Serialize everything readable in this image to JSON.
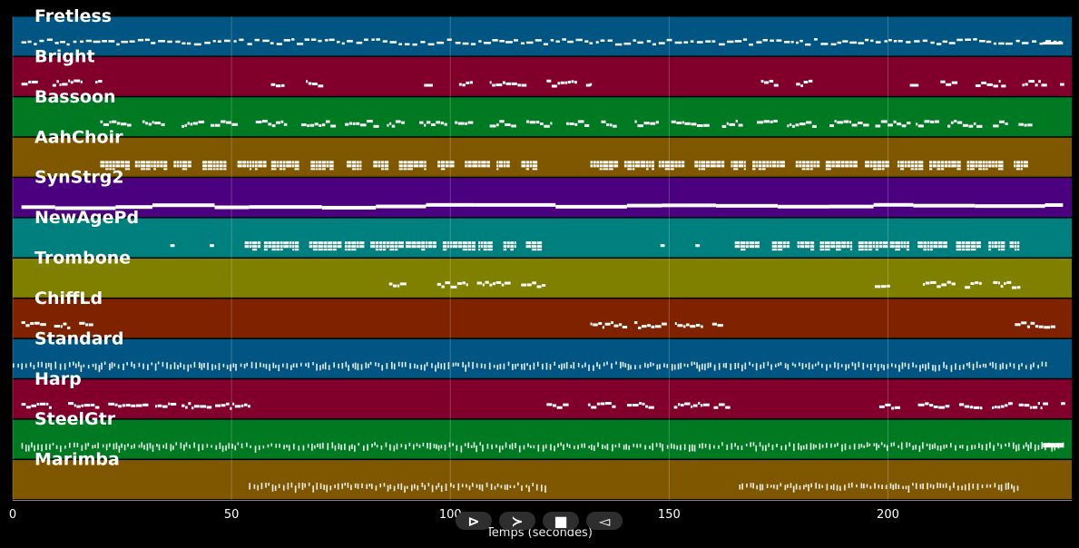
{
  "chart_data": {
    "type": "piano-roll",
    "xlabel": "Temps (secondes)",
    "xlim": [
      0,
      242
    ],
    "xticks": [
      0,
      50,
      100,
      150,
      200
    ],
    "grid": true,
    "tracks": [
      {
        "name": "Fretless",
        "color": "#005582",
        "pattern": "dense",
        "segments": [
          [
            2,
            240
          ]
        ]
      },
      {
        "name": "Bright",
        "color": "#80002b",
        "pattern": "chunks",
        "segments": [
          [
            2,
            20
          ],
          [
            59,
            62
          ],
          [
            67,
            70
          ],
          [
            94,
            96
          ],
          [
            102,
            105
          ],
          [
            109,
            120
          ],
          [
            122,
            132
          ],
          [
            131,
            132
          ],
          [
            171,
            174
          ],
          [
            179,
            182
          ],
          [
            205,
            207
          ],
          [
            212,
            215
          ],
          [
            220,
            240
          ]
        ]
      },
      {
        "name": "Bassoon",
        "color": "#007a22",
        "pattern": "chunks",
        "segments": [
          [
            20,
            232
          ]
        ]
      },
      {
        "name": "AahChoir",
        "color": "#7f5700",
        "pattern": "chords",
        "segments": [
          [
            20,
            120
          ],
          [
            132,
            232
          ]
        ]
      },
      {
        "name": "SynStrg2",
        "color": "#4b007f",
        "pattern": "solid",
        "segments": [
          [
            2,
            240
          ]
        ]
      },
      {
        "name": "NewAgePd",
        "color": "#007f7f",
        "pattern": "chords",
        "segments": [
          [
            36,
            37
          ],
          [
            45,
            46
          ],
          [
            53,
            120
          ],
          [
            148,
            149
          ],
          [
            156,
            157
          ],
          [
            165,
            230
          ]
        ]
      },
      {
        "name": "Trombone",
        "color": "#7f7f00",
        "pattern": "chunks",
        "segments": [
          [
            86,
            89
          ],
          [
            97,
            122
          ],
          [
            197,
            200
          ],
          [
            208,
            230
          ]
        ]
      },
      {
        "name": "ChiffLd",
        "color": "#7f2200",
        "pattern": "chunks",
        "segments": [
          [
            2,
            18
          ],
          [
            132,
            162
          ],
          [
            229,
            240
          ]
        ]
      },
      {
        "name": "Standard",
        "color": "#005582",
        "pattern": "ticks",
        "segments": [
          [
            0,
            236
          ]
        ]
      },
      {
        "name": "Harp",
        "color": "#80002b",
        "pattern": "chunks",
        "segments": [
          [
            2,
            54
          ],
          [
            122,
            164
          ],
          [
            198,
            240
          ]
        ]
      },
      {
        "name": "SteelGtr",
        "color": "#007a22",
        "pattern": "ticks",
        "segments": [
          [
            2,
            240
          ]
        ]
      },
      {
        "name": "Marimba",
        "color": "#7f5700",
        "pattern": "ticks",
        "segments": [
          [
            54,
            122
          ],
          [
            166,
            230
          ]
        ]
      }
    ]
  },
  "controls": {
    "play_label": "⊳",
    "forward_label": "≻",
    "stop_label": "■",
    "back_label": "◅"
  }
}
